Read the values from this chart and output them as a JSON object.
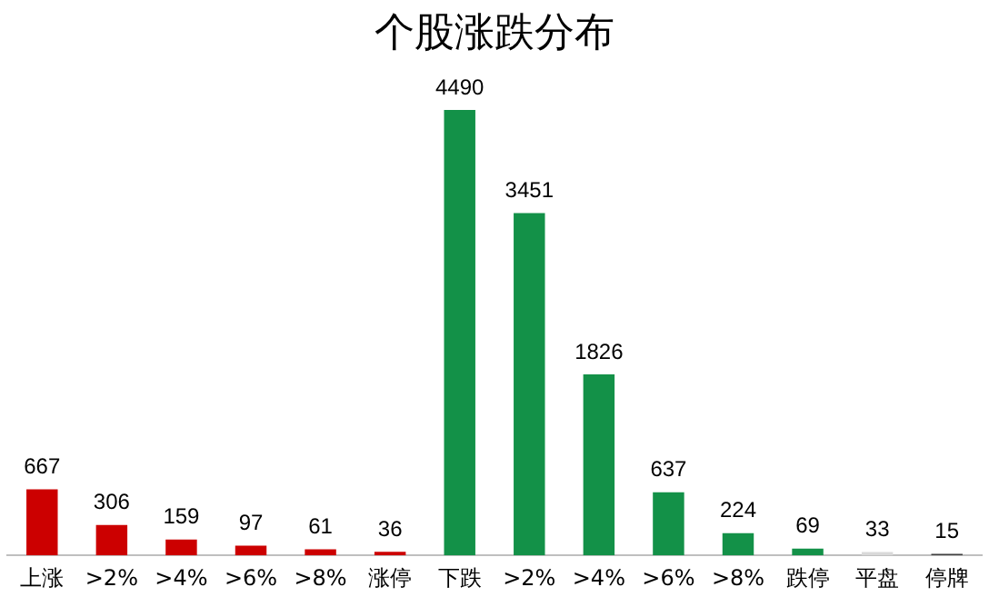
{
  "chart_data": {
    "type": "bar",
    "title": "个股涨跌分布",
    "categories": [
      "上涨",
      ">2%",
      ">4%",
      ">6%",
      ">8%",
      "涨停",
      "下跌",
      ">2%",
      ">4%",
      ">6%",
      ">8%",
      "跌停",
      "平盘",
      "停牌"
    ],
    "values": [
      667,
      306,
      159,
      97,
      61,
      36,
      4490,
      3451,
      1826,
      637,
      224,
      69,
      33,
      15
    ],
    "colors": [
      "#cc0000",
      "#cc0000",
      "#cc0000",
      "#cc0000",
      "#cc0000",
      "#cc0000",
      "#139148",
      "#139148",
      "#139148",
      "#139148",
      "#139148",
      "#139148",
      "#d9d9d9",
      "#404040"
    ],
    "data_labels": true,
    "grid": false,
    "legend": false
  }
}
